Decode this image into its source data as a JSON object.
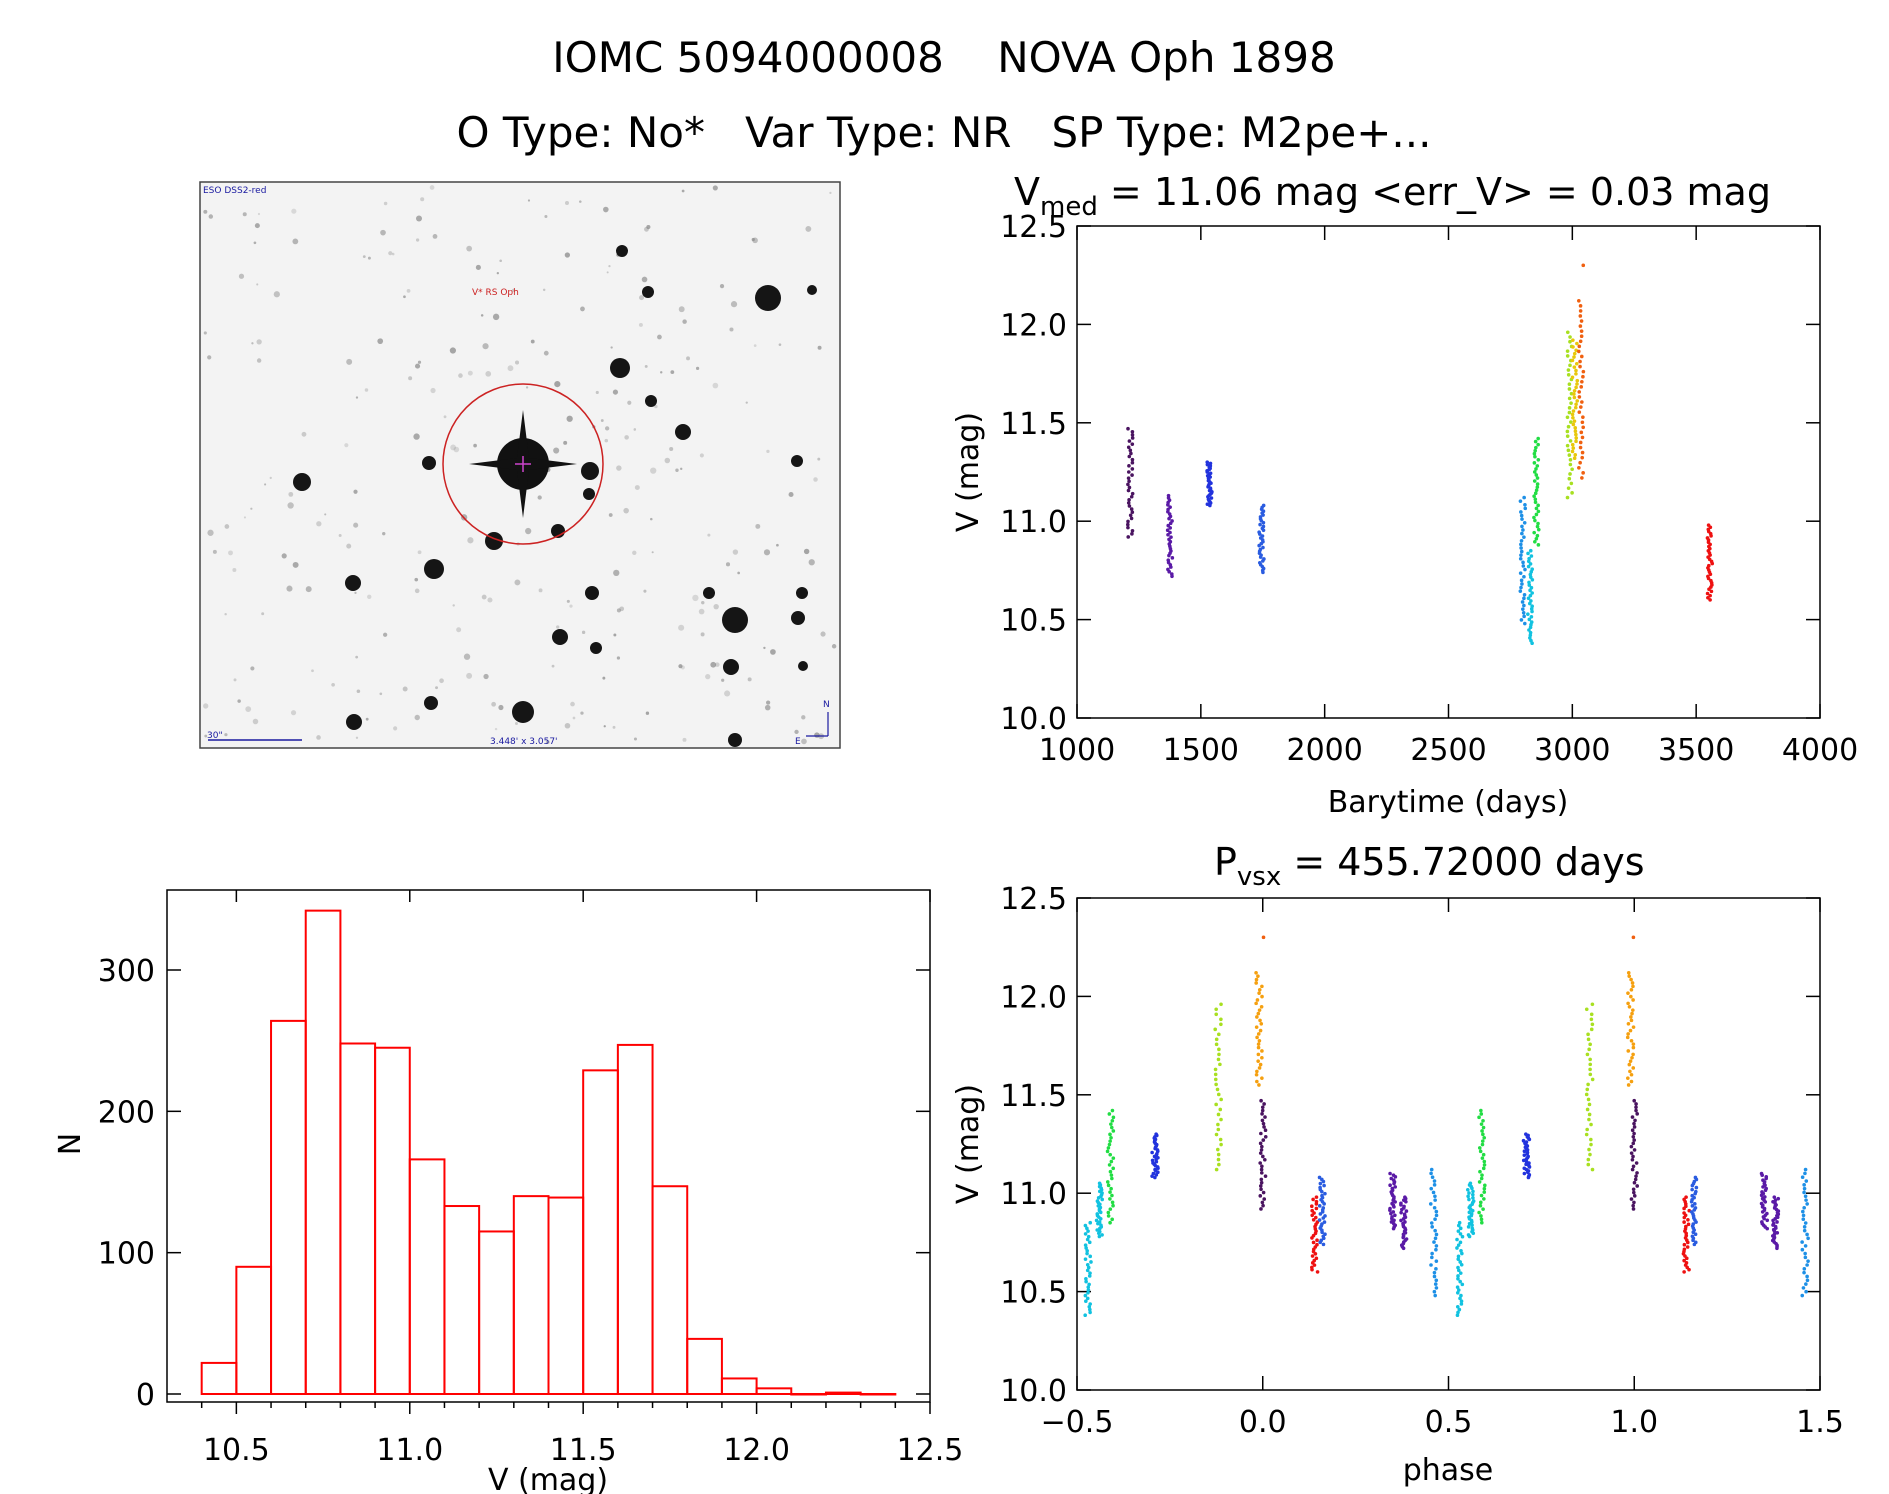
{
  "header": {
    "title": "IOMC 5094000008    NOVA Oph 1898",
    "subtitle": "O Type: No*   Var Type: NR   SP Type: M2pe+..."
  },
  "finder": {
    "survey": "ESO DSS2-red",
    "target": "V* RS Oph",
    "scale": "30\"",
    "fov": "3.448' x 3.057'",
    "north": "N",
    "east": "E"
  },
  "chart_data": [
    {
      "id": "lightcurve",
      "type": "scatter",
      "title_prefix": "V",
      "title_sub": "med",
      "title_rest": " = 11.06 mag <err_V> = 0.03 mag",
      "xlabel": "Barytime (days)",
      "ylabel": "V (mag)",
      "xlim": [
        1000,
        4000
      ],
      "ylim": [
        12.5,
        10.0
      ],
      "xticks": [
        1000,
        1500,
        2000,
        2500,
        3000,
        3500,
        4000
      ],
      "yticks": [
        "10.0",
        "10.5",
        "11.0",
        "11.5",
        "12.0",
        "12.5"
      ],
      "groups": [
        {
          "t": 1215,
          "ymin": 10.92,
          "ymax": 11.47,
          "color": "#4a1460"
        },
        {
          "t": 1375,
          "ymin": 10.72,
          "ymax": 11.13,
          "color": "#5a1aa6"
        },
        {
          "t": 1535,
          "ymin": 11.08,
          "ymax": 11.3,
          "color": "#2233dd"
        },
        {
          "t": 1745,
          "ymin": 10.74,
          "ymax": 11.08,
          "color": "#2a5ce0"
        },
        {
          "t": 2800,
          "ymin": 10.48,
          "ymax": 11.12,
          "color": "#1e90e6"
        },
        {
          "t": 2830,
          "ymin": 10.38,
          "ymax": 10.85,
          "color": "#12c2e0"
        },
        {
          "t": 2855,
          "ymin": 10.88,
          "ymax": 11.42,
          "color": "#22dd44"
        },
        {
          "t": 2990,
          "ymin": 11.12,
          "ymax": 11.96,
          "color": "#a8e020"
        },
        {
          "t": 3010,
          "ymin": 11.32,
          "ymax": 11.92,
          "color": "#e8c80c"
        },
        {
          "t": 3035,
          "ymin": 11.22,
          "ymax": 12.12,
          "color": "#f06010"
        },
        {
          "t": 3035,
          "ymin": 12.3,
          "ymax": 12.3,
          "color": "#f06010"
        },
        {
          "t": 3555,
          "ymin": 10.6,
          "ymax": 10.98,
          "color": "#ee1111"
        }
      ]
    },
    {
      "id": "histogram",
      "type": "bar",
      "xlabel": "V (mag)",
      "ylabel": "N",
      "xlim": [
        10.3,
        12.5
      ],
      "ylim": [
        0,
        350
      ],
      "xticks": [
        "10.5",
        "11.0",
        "11.5",
        "12.0",
        "12.5"
      ],
      "yticks": [
        "0",
        "100",
        "200",
        "300"
      ],
      "bin_width": 0.1,
      "bin_starts": [
        10.4,
        10.5,
        10.6,
        10.7,
        10.8,
        10.9,
        11.0,
        11.1,
        11.2,
        11.3,
        11.4,
        11.5,
        11.6,
        11.7,
        11.8,
        11.9,
        12.0,
        12.1,
        12.2,
        12.3
      ],
      "values": [
        22,
        90,
        264,
        342,
        248,
        245,
        166,
        133,
        115,
        140,
        139,
        229,
        247,
        147,
        39,
        11,
        4,
        0,
        1,
        0
      ],
      "color": "#ff0000"
    },
    {
      "id": "phased",
      "type": "scatter",
      "title_prefix": "P",
      "title_sub": "vsx",
      "title_rest": " = 455.72000 days",
      "xlabel": "phase",
      "ylabel": "V (mag)",
      "xlim": [
        -0.5,
        1.5
      ],
      "ylim": [
        12.5,
        10.0
      ],
      "xticks": [
        "−0.5",
        "0.0",
        "0.5",
        "1.0",
        "1.5"
      ],
      "yticks": [
        "10.0",
        "10.5",
        "11.0",
        "11.5",
        "12.0",
        "12.5"
      ],
      "groups": [
        {
          "phase": -0.47,
          "ymin": 10.38,
          "ymax": 10.85,
          "color": "#12c2e0"
        },
        {
          "phase": -0.44,
          "ymin": 10.78,
          "ymax": 11.05,
          "color": "#12c2e0"
        },
        {
          "phase": -0.41,
          "ymin": 10.85,
          "ymax": 11.42,
          "color": "#22dd44"
        },
        {
          "phase": -0.29,
          "ymin": 11.08,
          "ymax": 11.3,
          "color": "#2233dd"
        },
        {
          "phase": -0.12,
          "ymin": 11.12,
          "ymax": 11.96,
          "color": "#a8e020"
        },
        {
          "phase": -0.01,
          "ymin": 11.55,
          "ymax": 12.12,
          "color": "#f5a010"
        },
        {
          "phase": 0.0,
          "ymin": 10.92,
          "ymax": 11.47,
          "color": "#4a1460"
        },
        {
          "phase": 0.0,
          "ymin": 12.3,
          "ymax": 12.3,
          "color": "#f06010"
        },
        {
          "phase": 0.14,
          "ymin": 10.6,
          "ymax": 10.98,
          "color": "#ee1111"
        },
        {
          "phase": 0.16,
          "ymin": 10.74,
          "ymax": 11.08,
          "color": "#2a5ce0"
        },
        {
          "phase": 0.35,
          "ymin": 10.82,
          "ymax": 11.1,
          "color": "#5a1aa6"
        },
        {
          "phase": 0.38,
          "ymin": 10.72,
          "ymax": 10.98,
          "color": "#5a1aa6"
        },
        {
          "phase": 0.46,
          "ymin": 10.48,
          "ymax": 11.12,
          "color": "#1e90e6"
        },
        {
          "phase": 0.53,
          "ymin": 10.38,
          "ymax": 10.85,
          "color": "#12c2e0"
        },
        {
          "phase": 0.56,
          "ymin": 10.78,
          "ymax": 11.05,
          "color": "#12c2e0"
        },
        {
          "phase": 0.59,
          "ymin": 10.85,
          "ymax": 11.42,
          "color": "#22dd44"
        },
        {
          "phase": 0.71,
          "ymin": 11.08,
          "ymax": 11.3,
          "color": "#2233dd"
        },
        {
          "phase": 0.88,
          "ymin": 11.12,
          "ymax": 11.96,
          "color": "#a8e020"
        },
        {
          "phase": 0.99,
          "ymin": 11.55,
          "ymax": 12.12,
          "color": "#f5a010"
        },
        {
          "phase": 1.0,
          "ymin": 10.92,
          "ymax": 11.47,
          "color": "#4a1460"
        },
        {
          "phase": 1.0,
          "ymin": 12.3,
          "ymax": 12.3,
          "color": "#f06010"
        },
        {
          "phase": 1.14,
          "ymin": 10.6,
          "ymax": 10.98,
          "color": "#ee1111"
        },
        {
          "phase": 1.16,
          "ymin": 10.74,
          "ymax": 11.08,
          "color": "#2a5ce0"
        },
        {
          "phase": 1.35,
          "ymin": 10.82,
          "ymax": 11.1,
          "color": "#5a1aa6"
        },
        {
          "phase": 1.38,
          "ymin": 10.72,
          "ymax": 10.98,
          "color": "#5a1aa6"
        },
        {
          "phase": 1.46,
          "ymin": 10.48,
          "ymax": 11.12,
          "color": "#1e90e6"
        }
      ]
    }
  ]
}
